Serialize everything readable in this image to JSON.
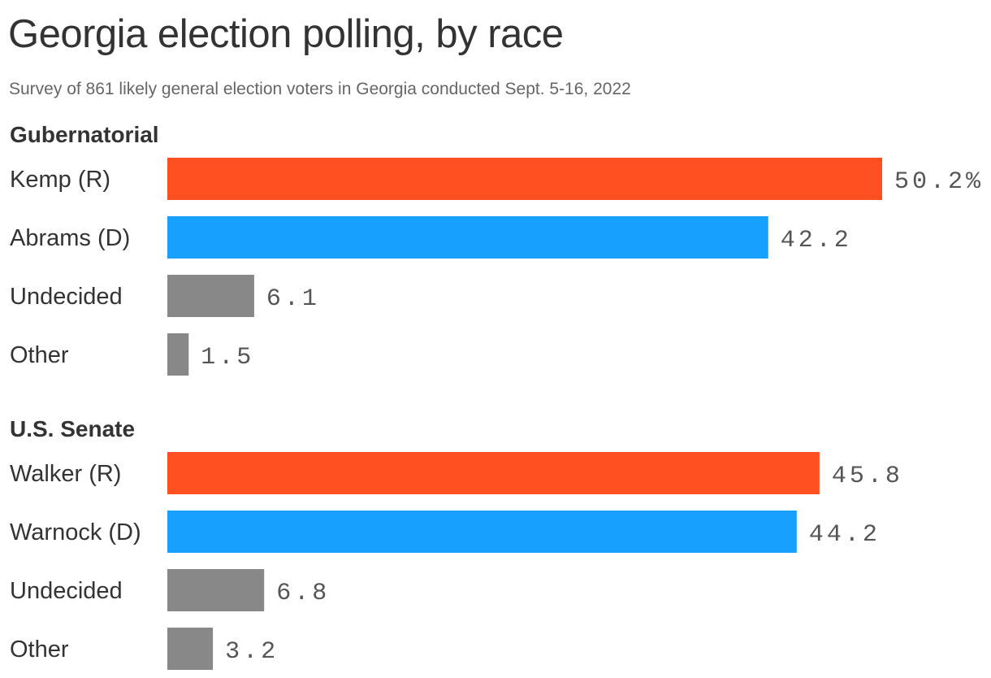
{
  "title": "Georgia election polling, by race",
  "subtitle": "Survey of 861 likely general election voters in Georgia conducted Sept. 5-16, 2022",
  "colors": {
    "republican": "#ff5022",
    "democrat": "#18a0ff",
    "neutral": "#888888"
  },
  "chart_data": {
    "type": "bar",
    "orientation": "horizontal",
    "unit": "%",
    "groups": [
      {
        "name": "Gubernatorial",
        "bars": [
          {
            "label": "Kemp (R)",
            "value": 50.2,
            "display": "50.2%",
            "color": "republican"
          },
          {
            "label": "Abrams (D)",
            "value": 42.2,
            "display": "42.2",
            "color": "democrat"
          },
          {
            "label": "Undecided",
            "value": 6.1,
            "display": "6.1",
            "color": "neutral"
          },
          {
            "label": "Other",
            "value": 1.5,
            "display": "1.5",
            "color": "neutral"
          }
        ]
      },
      {
        "name": "U.S. Senate",
        "bars": [
          {
            "label": "Walker (R)",
            "value": 45.8,
            "display": "45.8",
            "color": "republican"
          },
          {
            "label": "Warnock (D)",
            "value": 44.2,
            "display": "44.2",
            "color": "democrat"
          },
          {
            "label": "Undecided",
            "value": 6.8,
            "display": "6.8",
            "color": "neutral"
          },
          {
            "label": "Other",
            "value": 3.2,
            "display": "3.2",
            "color": "neutral"
          }
        ]
      }
    ]
  }
}
